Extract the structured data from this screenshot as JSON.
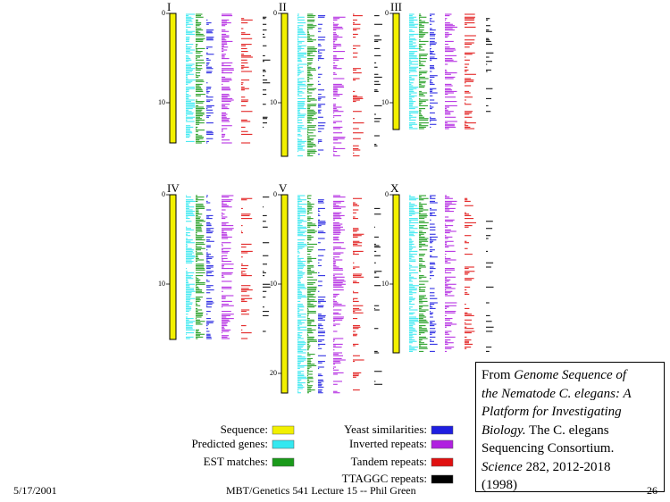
{
  "figure": {
    "chromosomes": [
      {
        "label": "I",
        "ticks": [
          "0",
          "10"
        ]
      },
      {
        "label": "II",
        "ticks": [
          "0",
          "10"
        ]
      },
      {
        "label": "III",
        "ticks": [
          "0",
          "10"
        ]
      },
      {
        "label": "IV",
        "ticks": [
          "0",
          "10"
        ]
      },
      {
        "label": "V",
        "ticks": [
          "0",
          "10",
          "20"
        ]
      },
      {
        "label": "X",
        "ticks": [
          "0",
          "10"
        ]
      }
    ],
    "legend": [
      {
        "label": "Sequence:",
        "color": "#f2f000"
      },
      {
        "label": "Predicted genes:",
        "color": "#33e8f0"
      },
      {
        "label": "EST matches:",
        "color": "#1a9a1a"
      },
      {
        "label": "Yeast similarities:",
        "color": "#1f1fe0"
      },
      {
        "label": "Inverted repeats:",
        "color": "#b020e0"
      },
      {
        "label": "Tandem repeats:",
        "color": "#e01010"
      },
      {
        "label": "TTAGGC repeats:",
        "color": "#000000"
      }
    ]
  },
  "citation": {
    "lines": [
      [
        {
          "text": "From ",
          "italic": false
        },
        {
          "text": "Genome Sequence of",
          "italic": true
        }
      ],
      [
        {
          "text": "the Nematode C. elegans: A",
          "italic": true
        }
      ],
      [
        {
          "text": "Platform for Investigating",
          "italic": true
        }
      ],
      [
        {
          "text": "Biology.",
          "italic": true
        },
        {
          "text": " The C. elegans",
          "italic": false
        }
      ],
      [
        {
          "text": "Sequencing Consortium.",
          "italic": false
        }
      ],
      [
        {
          "text": "Science",
          "italic": true
        },
        {
          "text": " 282, 2012-2018",
          "italic": false
        }
      ],
      [
        {
          "text": "(1998)",
          "italic": false
        }
      ]
    ]
  },
  "footer": {
    "date": "5/17/2001",
    "course": "MBT/Genetics 541 Lecture 15 -- Phil Green",
    "page": "26"
  }
}
